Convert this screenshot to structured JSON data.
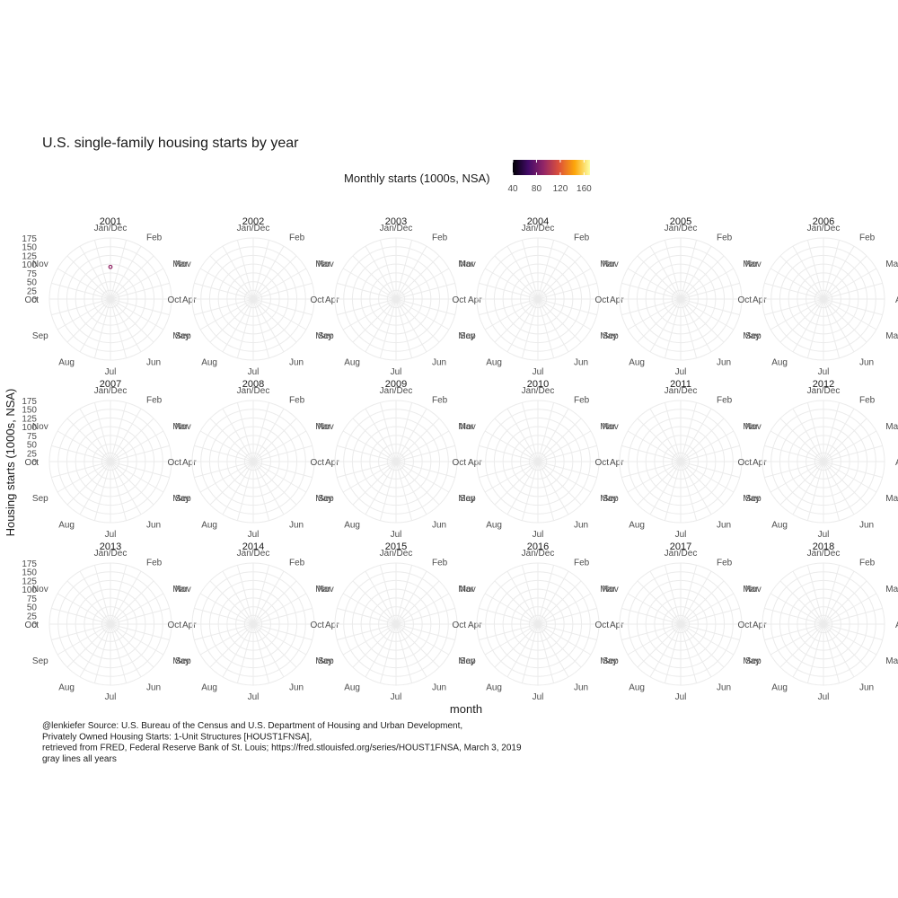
{
  "chart_data": {
    "type": "polar-line-facets",
    "title": "U.S. single-family housing starts by year",
    "xlabel": "month",
    "ylabel": "Housing starts (1000s, NSA)",
    "months": [
      "Jan/Dec",
      "Feb",
      "Mar",
      "Apr",
      "May",
      "Jun",
      "Jul",
      "Aug",
      "Sep",
      "Oct",
      "Nov"
    ],
    "radial_ticks": [
      "0",
      "25",
      "50",
      "75",
      "100",
      "125",
      "150",
      "175"
    ],
    "rlim": [
      0,
      175
    ],
    "legend": {
      "title": "Monthly starts (1000s, NSA)",
      "ticks": [
        "40",
        "80",
        "120",
        "160"
      ],
      "range": [
        40,
        170
      ],
      "placement": "top",
      "colors": [
        "#000004",
        "#420a68",
        "#932667",
        "#dd513a",
        "#fca50a",
        "#fcffa4"
      ]
    },
    "facets": [
      "2001",
      "2002",
      "2003",
      "2004",
      "2005",
      "2006",
      "2007",
      "2008",
      "2009",
      "2010",
      "2011",
      "2012",
      "2013",
      "2014",
      "2015",
      "2016",
      "2017",
      "2018"
    ],
    "points": [
      {
        "facet": "2001",
        "month": "Jan/Dec",
        "value": 92,
        "color": "#932667"
      }
    ],
    "caption": [
      "@lenkiefer Source: U.S. Bureau of the Census and U.S. Department of Housing and Urban Development,",
      "Privately Owned Housing Starts: 1-Unit Structures [HOUST1FNSA],",
      "retrieved from FRED, Federal Reserve Bank of St. Louis; https://fred.stlouisfed.org/series/HOUST1FNSA, March 3, 2019",
      "gray lines all years"
    ],
    "grid": true
  }
}
